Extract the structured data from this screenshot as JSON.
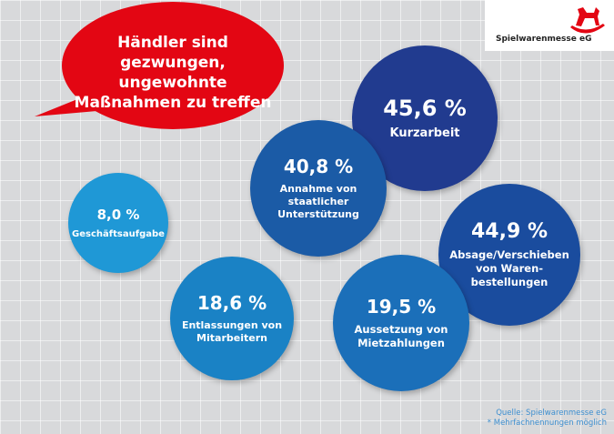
{
  "brand": {
    "name": "Spielwarenmesse eG",
    "logo": "rocking-horse-icon",
    "color": "#e30613"
  },
  "headline": "Händler sind gezwungen, ungewohnte Maßnahmen zu treffen",
  "footer": {
    "source": "Quelle: Spielwarenmesse eG",
    "note": "* Mehrfachnennungen möglich"
  },
  "chart_data": {
    "type": "bubble",
    "unit": "%",
    "items": [
      {
        "value_label": "45,6 %",
        "value": 45.6,
        "label": "Kurzarbeit",
        "color": "#213b8f"
      },
      {
        "value_label": "44,9 %",
        "value": 44.9,
        "label": "Absage/Verschieben von Waren-bestellungen",
        "color": "#1a4c9e"
      },
      {
        "value_label": "40,8 %",
        "value": 40.8,
        "label": "Annahme von staatlicher Unterstützung",
        "color": "#1b5ba6"
      },
      {
        "value_label": "19,5 %",
        "value": 19.5,
        "label": "Aussetzung von Mietzahlungen",
        "color": "#1b6fb9"
      },
      {
        "value_label": "18,6 %",
        "value": 18.6,
        "label": "Entlassungen von Mitarbeitern",
        "color": "#1a82c5"
      },
      {
        "value_label": "8,0 %",
        "value": 8.0,
        "label": "Geschäftsaufgabe",
        "color": "#1f98d6"
      }
    ]
  }
}
